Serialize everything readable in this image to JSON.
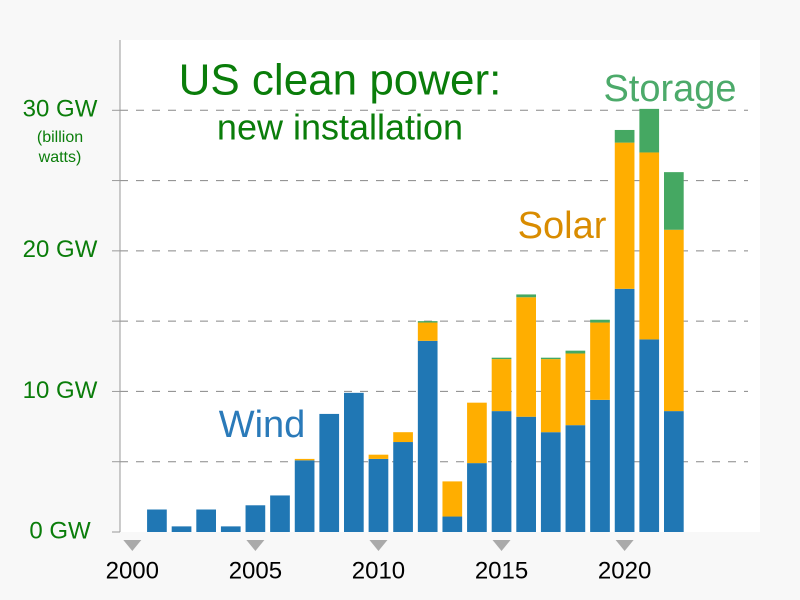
{
  "chart_data": {
    "type": "stacked_bar",
    "title": "US clean power:",
    "subtitle": "new installation",
    "y_unit_note": [
      "(billion",
      "watts)"
    ],
    "x": [
      2000,
      2001,
      2002,
      2003,
      2004,
      2005,
      2006,
      2007,
      2008,
      2009,
      2010,
      2011,
      2012,
      2013,
      2014,
      2015,
      2016,
      2017,
      2018,
      2019,
      2020,
      2021,
      2022
    ],
    "xlim": [
      1999.5,
      2025.5
    ],
    "xticks": [
      2000,
      2005,
      2010,
      2015,
      2020
    ],
    "ylim": [
      0,
      35
    ],
    "yticks": [
      {
        "value": 0,
        "label": "0 GW"
      },
      {
        "value": 10,
        "label": "10 GW"
      },
      {
        "value": 20,
        "label": "20 GW"
      },
      {
        "value": 30,
        "label": "30 GW"
      }
    ],
    "minor_yticks": [
      5,
      15,
      25
    ],
    "grid": true,
    "series": [
      {
        "name": "Wind",
        "color": "#2077b4",
        "label_color": "#2a7ab9",
        "values": [
          0,
          1.6,
          0.4,
          1.6,
          0.4,
          1.9,
          2.6,
          5.1,
          8.4,
          9.9,
          5.2,
          6.4,
          13.6,
          1.1,
          4.9,
          8.6,
          8.2,
          7.1,
          7.6,
          9.4,
          17.3,
          13.7,
          8.6
        ]
      },
      {
        "name": "Solar",
        "color": "#ffae00",
        "label_color": "#d98c00",
        "values": [
          0,
          0,
          0,
          0,
          0,
          0,
          0,
          0.1,
          0,
          0,
          0.3,
          0.7,
          1.3,
          2.5,
          4.3,
          3.7,
          8.5,
          5.2,
          5.1,
          5.5,
          10.4,
          13.3,
          12.9
        ]
      },
      {
        "name": "Storage",
        "color": "#45a862",
        "label_color": "#4caa6a",
        "values": [
          0,
          0,
          0,
          0,
          0,
          0,
          0,
          0,
          0,
          0,
          0,
          0,
          0.1,
          0,
          0,
          0.1,
          0.2,
          0.1,
          0.2,
          0.2,
          0.9,
          3.1,
          4.1
        ]
      }
    ]
  }
}
